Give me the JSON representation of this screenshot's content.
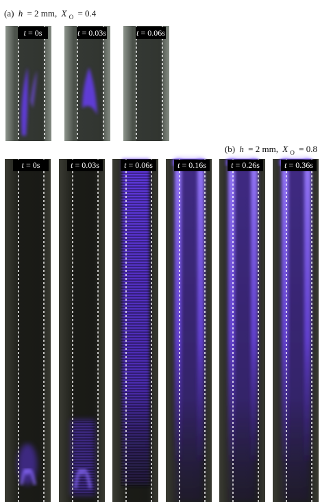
{
  "panels": [
    {
      "caption": {
        "label": "(a)",
        "var": "h",
        "text": "= 2 mm,",
        "var2": "X",
        "sub": "O",
        "text2": "= 0.4"
      },
      "frames": [
        {
          "var": "t",
          "label": "= 0s"
        },
        {
          "var": "t",
          "label": "= 0.03s"
        },
        {
          "var": "t",
          "label": "= 0.06s"
        }
      ]
    },
    {
      "caption": {
        "label": "(b)",
        "var": "h",
        "text": "= 2 mm,",
        "var2": "X",
        "sub": "O",
        "text2": "= 0.8"
      },
      "frames": [
        {
          "var": "t",
          "label": "= 0s"
        },
        {
          "var": "t",
          "label": "= 0.03s"
        },
        {
          "var": "t",
          "label": "= 0.06s"
        },
        {
          "var": "t",
          "label": "= 0.16s"
        },
        {
          "var": "t",
          "label": "= 0.26s"
        },
        {
          "var": "t",
          "label": "= 0.36s"
        }
      ]
    }
  ]
}
